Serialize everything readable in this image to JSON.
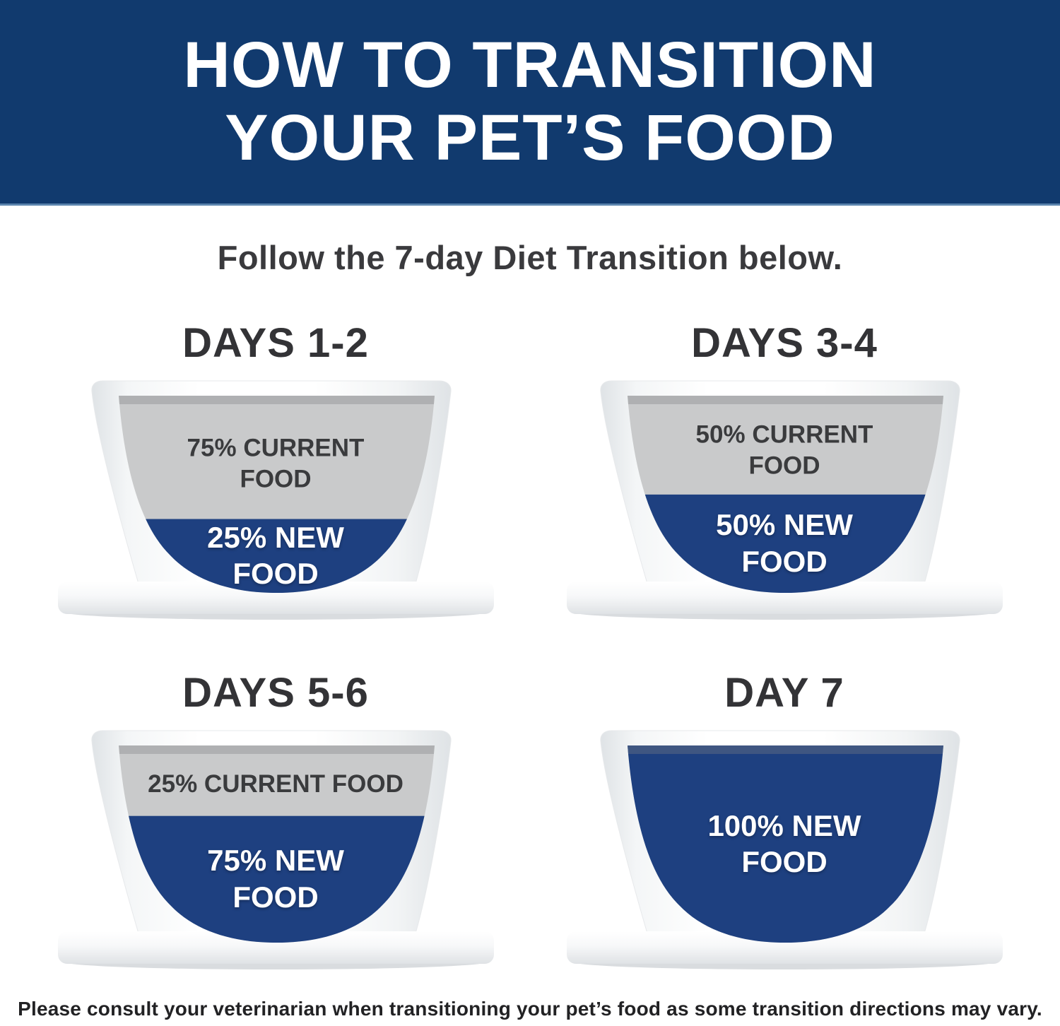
{
  "banner": {
    "title": "HOW TO TRANSITION\nYOUR PET’S FOOD",
    "bg_color": "#113a6e",
    "text_color": "#ffffff"
  },
  "subtitle": "Follow the 7-day Diet Transition below.",
  "bowls": [
    {
      "title": "DAYS 1-2",
      "current_pct": 75,
      "new_pct": 25,
      "current_label": "75% CURRENT\nFOOD",
      "new_label": "25% NEW\nFOOD"
    },
    {
      "title": "DAYS 3-4",
      "current_pct": 50,
      "new_pct": 50,
      "current_label": "50% CURRENT\nFOOD",
      "new_label": "50% NEW\nFOOD"
    },
    {
      "title": "DAYS 5-6",
      "current_pct": 25,
      "new_pct": 75,
      "current_label": "25% CURRENT FOOD",
      "new_label": "75% NEW\nFOOD"
    },
    {
      "title": "DAY 7",
      "current_pct": 0,
      "new_pct": 100,
      "current_label": "",
      "new_label": "100% NEW\nFOOD"
    }
  ],
  "colors": {
    "banner_blue": "#113a6e",
    "new_food_blue": "#1e4080",
    "current_food_gray": "#c9cacb"
  },
  "footer": "Please consult your veterinarian when transitioning your pet’s food as some transition directions may vary."
}
